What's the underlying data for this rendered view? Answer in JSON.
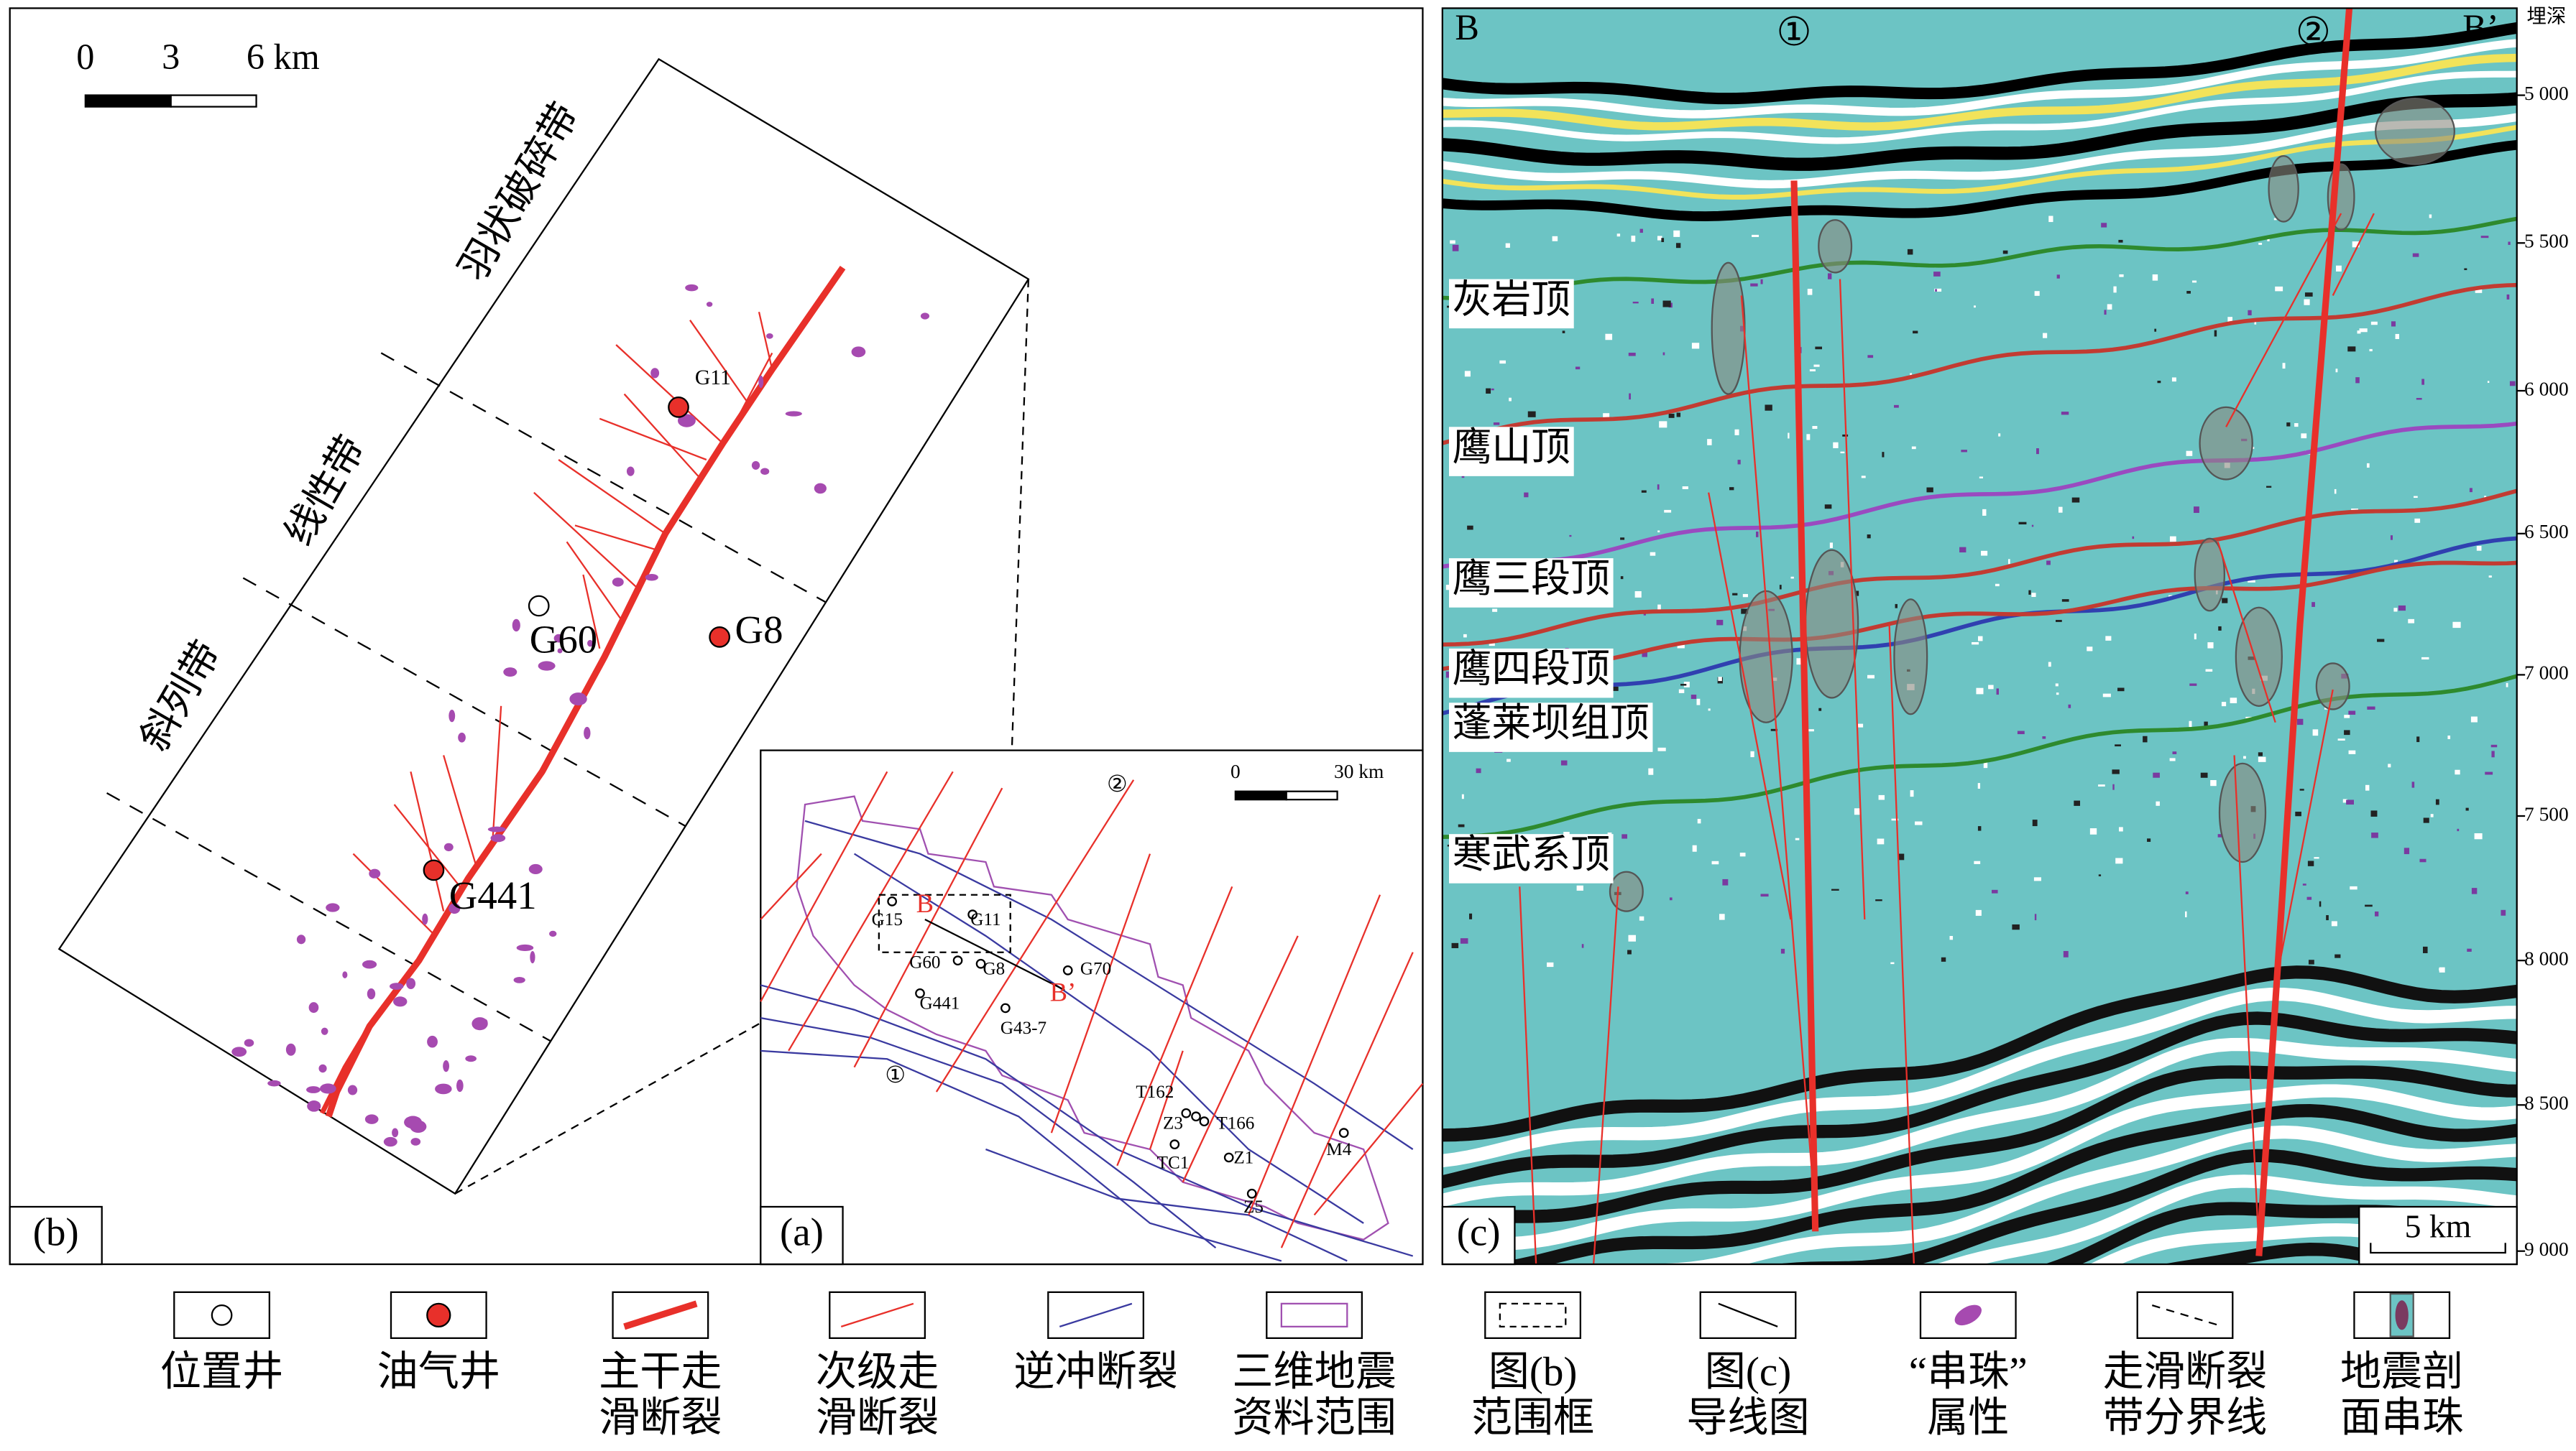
{
  "panel_b": {
    "label": "(b)",
    "scale_bar": [
      "0",
      "3",
      "6 km"
    ],
    "zones": [
      "羽状破碎带",
      "线性带",
      "斜列带"
    ],
    "wells": [
      "G11",
      "G60",
      "G8",
      "G441"
    ]
  },
  "panel_a": {
    "label": "(a)",
    "scale_bar": [
      "0",
      "30 km"
    ],
    "wells": [
      "G15",
      "G11",
      "G60",
      "G8",
      "G70",
      "G441",
      "G43-7",
      "T162",
      "Z3",
      "T166",
      "TC1",
      "Z1",
      "Z5",
      "M4"
    ],
    "section_ends": [
      "B",
      "B’"
    ],
    "fault_ids": [
      "①",
      "②"
    ]
  },
  "panel_c": {
    "label": "(c)",
    "section_ends": [
      "B",
      "B’"
    ],
    "fault_ids": [
      "①",
      "②"
    ],
    "depth_title": "埋深",
    "depth_ticks": [
      "5 000",
      "5 500",
      "6 000",
      "6 500",
      "7 000",
      "7 500",
      "8 000",
      "8 500",
      "9 000"
    ],
    "horizons": [
      "灰岩顶",
      "鹰山顶",
      "鹰三段顶",
      "鹰四段顶",
      "蓬莱坝组顶",
      "寒武系顶"
    ],
    "scale_bar": "5 km"
  },
  "legend": [
    {
      "lines": [
        "位置井"
      ]
    },
    {
      "lines": [
        "油气井"
      ]
    },
    {
      "lines": [
        "主干走",
        "滑断裂"
      ]
    },
    {
      "lines": [
        "次级走",
        "滑断裂"
      ]
    },
    {
      "lines": [
        "逆冲断裂"
      ]
    },
    {
      "lines": [
        "三维地震",
        "资料范围"
      ]
    },
    {
      "lines": [
        "图(b)",
        "范围框"
      ]
    },
    {
      "lines": [
        "图(c)",
        "导线图"
      ]
    },
    {
      "lines": [
        "“串珠”",
        "属性"
      ]
    },
    {
      "lines": [
        "走滑断裂",
        "带分界线"
      ]
    },
    {
      "lines": [
        "地震剖",
        "面串珠"
      ]
    }
  ]
}
